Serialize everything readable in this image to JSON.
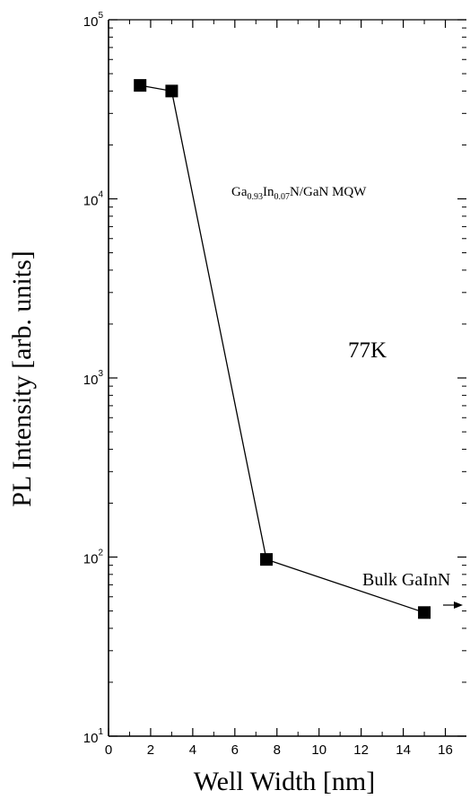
{
  "chart_data": {
    "type": "line",
    "xlabel": "Well Width [nm]",
    "ylabel": "PL Intensity [arb. units]",
    "x_scale": "linear",
    "y_scale": "log",
    "xlim": [
      0,
      17
    ],
    "ylim": [
      10,
      100000
    ],
    "x_ticks": [
      "0",
      "2",
      "4",
      "6",
      "8",
      "10",
      "12",
      "14",
      "16"
    ],
    "y_ticks": [
      {
        "base": "10",
        "exp": "1",
        "value": 10
      },
      {
        "base": "10",
        "exp": "2",
        "value": 100
      },
      {
        "base": "10",
        "exp": "3",
        "value": 1000
      },
      {
        "base": "10",
        "exp": "4",
        "value": 10000
      },
      {
        "base": "10",
        "exp": "5",
        "value": 100000
      }
    ],
    "series": [
      {
        "marker": "square",
        "points": [
          {
            "x": 1.5,
            "y": 43000
          },
          {
            "x": 3,
            "y": 40000
          },
          {
            "x": 7.5,
            "y": 97
          },
          {
            "x": 15,
            "y": 49
          }
        ]
      }
    ],
    "annotations": {
      "composition": {
        "p1": "Ga",
        "s1": "0.93",
        "p2": "In",
        "s2": "0.07",
        "p3": "N/GaN MQW"
      },
      "temperature": "77K",
      "bulk": "Bulk GaInN"
    },
    "colors": {
      "line": "#000000",
      "marker": "#000000"
    }
  }
}
